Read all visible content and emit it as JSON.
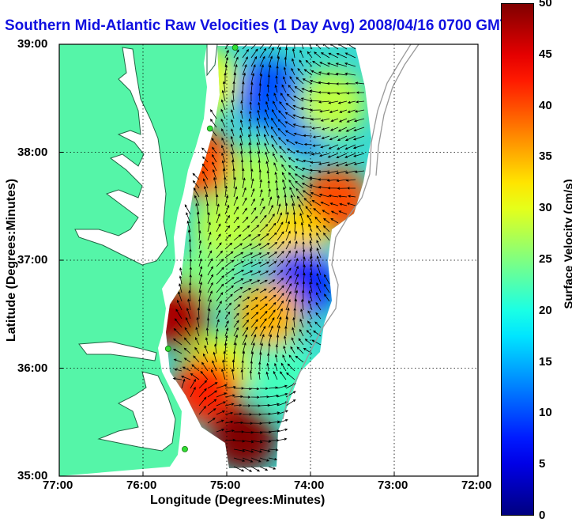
{
  "chart_data": {
    "type": "heatmap",
    "title": "Southern Mid-Atlantic Raw Velocities (1 Day Avg) 2008/04/16 0700 GMT",
    "xlabel": "Longitude (Degrees:Minutes)",
    "ylabel": "Latitude (Degrees:Minutes)",
    "colorbar_label": "Surface Velocity (cm/s)",
    "x_ticks": [
      "77:00",
      "76:00",
      "75:00",
      "74:00",
      "73:00",
      "72:00"
    ],
    "y_ticks": [
      "35:00",
      "36:00",
      "37:00",
      "38:00",
      "39:00"
    ],
    "xlim": [
      -77,
      -72
    ],
    "ylim": [
      35,
      39
    ],
    "colorbar_ticks": [
      "0",
      "5",
      "10",
      "15",
      "20",
      "25",
      "30",
      "35",
      "40",
      "45",
      "50"
    ],
    "color_range": [
      0,
      50
    ],
    "grid": true,
    "colors": {
      "land": "#55f5a8",
      "water_inland": "#ffffff",
      "title": "#1010e0",
      "site_marker": "#33dd33"
    },
    "velocity_regions": [
      {
        "lon": -74.5,
        "lat": 38.55,
        "speed": 10
      },
      {
        "lon": -74.1,
        "lat": 38.3,
        "speed": 12
      },
      {
        "lon": -73.75,
        "lat": 38.45,
        "speed": 28
      },
      {
        "lon": -75.25,
        "lat": 38.65,
        "speed": 30
      },
      {
        "lon": -75.3,
        "lat": 37.9,
        "speed": 40
      },
      {
        "lon": -74.6,
        "lat": 37.75,
        "speed": 27
      },
      {
        "lon": -73.7,
        "lat": 37.55,
        "speed": 40
      },
      {
        "lon": -74.2,
        "lat": 37.2,
        "speed": 33
      },
      {
        "lon": -75.0,
        "lat": 37.3,
        "speed": 28
      },
      {
        "lon": -74.1,
        "lat": 36.8,
        "speed": 8
      },
      {
        "lon": -74.5,
        "lat": 36.5,
        "speed": 35
      },
      {
        "lon": -75.3,
        "lat": 36.8,
        "speed": 25
      },
      {
        "lon": -75.1,
        "lat": 36.0,
        "speed": 30
      },
      {
        "lon": -75.25,
        "lat": 35.8,
        "speed": 42
      },
      {
        "lon": -74.8,
        "lat": 35.35,
        "speed": 50
      },
      {
        "lon": -74.3,
        "lat": 35.9,
        "speed": 22
      },
      {
        "lon": -75.6,
        "lat": 36.5,
        "speed": 48
      }
    ],
    "radar_sites": [
      {
        "lon": -74.9,
        "lat": 38.97
      },
      {
        "lon": -75.2,
        "lat": 38.22
      },
      {
        "lon": -75.7,
        "lat": 36.18
      },
      {
        "lon": -75.5,
        "lat": 35.25
      }
    ]
  }
}
